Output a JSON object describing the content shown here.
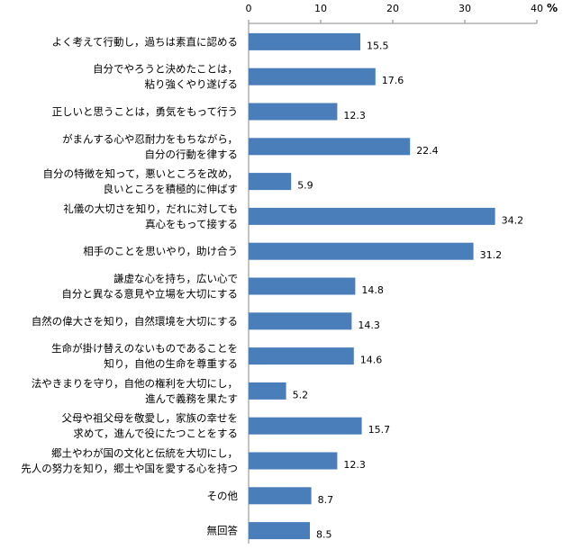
{
  "chart_data": {
    "type": "bar",
    "orientation": "horizontal",
    "unit": "%",
    "xlim": [
      0,
      40
    ],
    "ticks": [
      "0",
      "10",
      "20",
      "30",
      "40"
    ],
    "bar_color": "#4a7ebb",
    "categories": [
      [
        "よく考えて行動し，過ちは素直に認める"
      ],
      [
        "自分でやろうと決めたことは，",
        "粘り強くやり遂げる"
      ],
      [
        "正しいと思うことは，勇気をもって行う"
      ],
      [
        "がまんする心や忍耐力をもちながら，",
        "自分の行動を律する"
      ],
      [
        "自分の特徴を知って，悪いところを改め，",
        "良いところを積極的に伸ばす"
      ],
      [
        "礼儀の大切さを知り，だれに対しても",
        "真心をもって接する"
      ],
      [
        "相手のことを思いやり，助け合う"
      ],
      [
        "謙虚な心を持ち，広い心で",
        "自分と異なる意見や立場を大切にする"
      ],
      [
        "自然の偉大さを知り，自然環境を大切にする"
      ],
      [
        "生命が掛け替えのないものであることを",
        "知り，自他の生命を尊重する"
      ],
      [
        "法やきまりを守り，自他の権利を大切にし，",
        "進んで義務を果たす"
      ],
      [
        "父母や祖父母を敬愛し，家族の幸せを",
        "求めて，進んで役にたつことをする"
      ],
      [
        "郷土やわが国の文化と伝統を大切にし，",
        "先人の努力を知り，郷土や国を愛する心を持つ"
      ],
      [
        "その他"
      ],
      [
        "無回答"
      ]
    ],
    "values": [
      15.5,
      17.6,
      12.3,
      22.4,
      5.9,
      34.2,
      31.2,
      14.8,
      14.3,
      14.6,
      5.2,
      15.7,
      12.3,
      8.7,
      8.5
    ],
    "value_labels": [
      "15.5",
      "17.6",
      "12.3",
      "22.4",
      "5.9",
      "34.2",
      "31.2",
      "14.8",
      "14.3",
      "14.6",
      "5.2",
      "15.7",
      "12.3",
      "8.7",
      "8.5"
    ]
  }
}
